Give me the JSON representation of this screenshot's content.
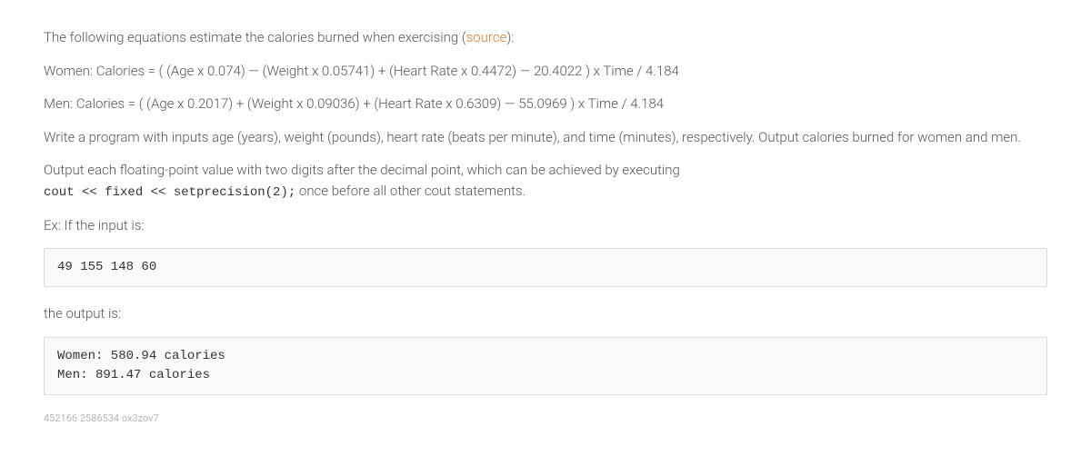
{
  "intro": {
    "prefix": "The following equations estimate the calories burned when exercising (",
    "link_text": "source",
    "suffix": "):"
  },
  "eq_women": "Women: Calories = ( (Age x 0.074) — (Weight x 0.05741) + (Heart Rate x 0.4472) — 20.4022 ) x Time / 4.184",
  "eq_men": "Men: Calories = ( (Age x 0.2017) + (Weight x 0.09036) + (Heart Rate x 0.6309) — 55.0969 ) x Time / 4.184",
  "instructions": "Write a program with inputs age (years), weight (pounds), heart rate (beats per minute), and time (minutes), respectively. Output calories burned for women and men.",
  "precision_prefix": "Output each floating-point value with two digits after the decimal point, which can be achieved by executing",
  "precision_code": "cout << fixed << setprecision(2);",
  "precision_suffix": " once before all other cout statements.",
  "ex_label": "Ex: If the input is:",
  "input_box": "49 155 148 60",
  "output_label": "the output is:",
  "output_box": "Women: 580.94 calories\nMen: 891.47 calories",
  "footer_id": "452166 2586534 ox3zov7",
  "colors": {
    "text": "#555555",
    "link": "#e87722",
    "code_border": "#dcdcdc",
    "code_bg": "#fafafa",
    "footer": "#b8b8b8"
  }
}
